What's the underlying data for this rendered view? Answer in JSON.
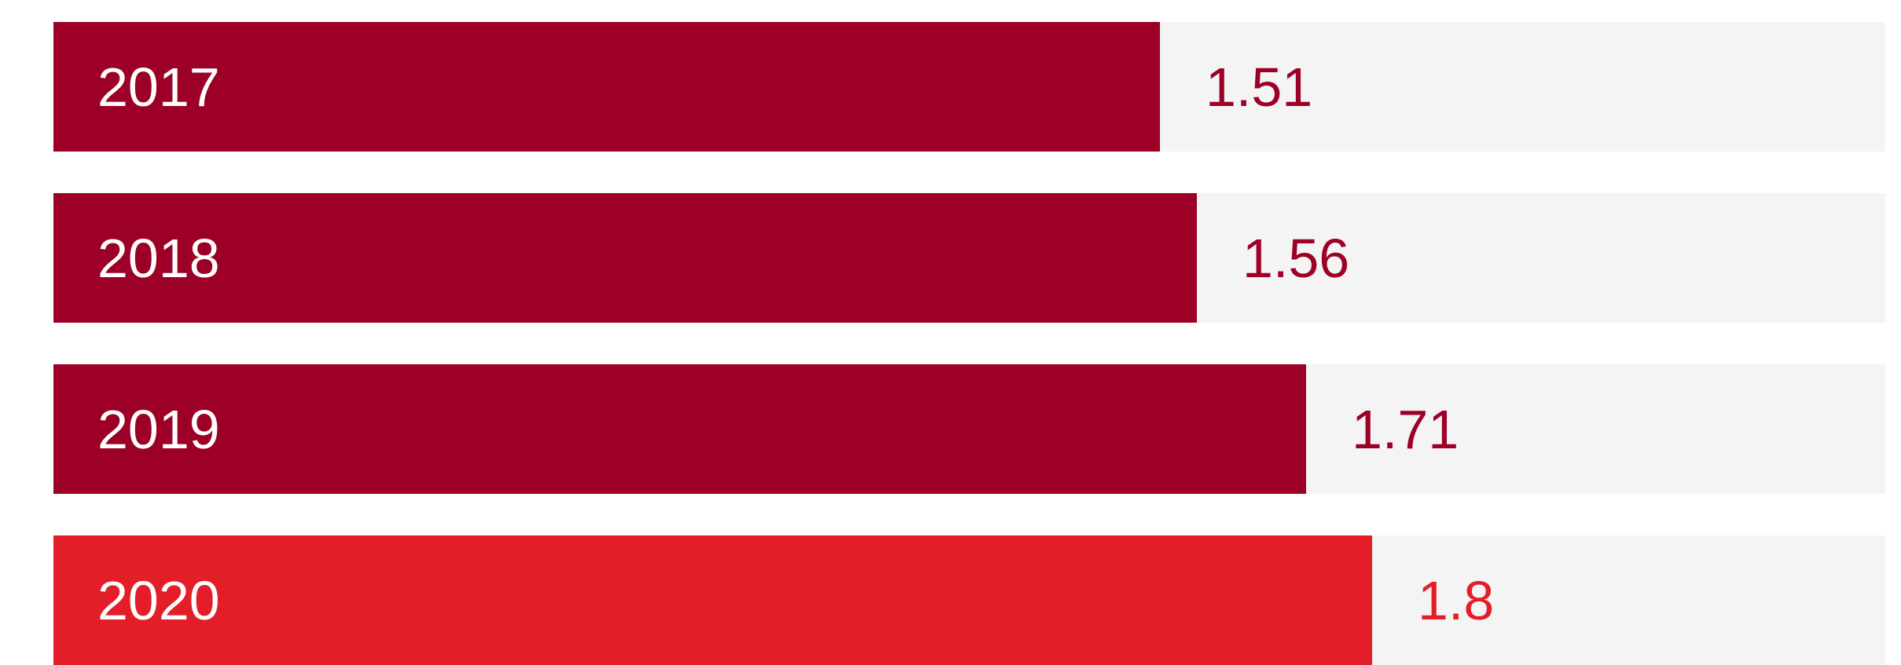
{
  "chart_data": {
    "type": "bar",
    "orientation": "horizontal",
    "categories": [
      "2017",
      "2018",
      "2019",
      "2020"
    ],
    "values": [
      1.51,
      1.56,
      1.71,
      1.8
    ],
    "value_labels": [
      "1.51",
      "1.56",
      "1.71",
      "1.8"
    ],
    "xlim": [
      0,
      2.5
    ],
    "grid": false,
    "legend": "none",
    "title": "",
    "xlabel": "",
    "ylabel": ""
  },
  "colors": {
    "bar": "#9c0026",
    "highlight_bar": "#e31e29",
    "track": "#f4f4f4",
    "category_text": "#ffffff"
  },
  "highlight_index": 3
}
